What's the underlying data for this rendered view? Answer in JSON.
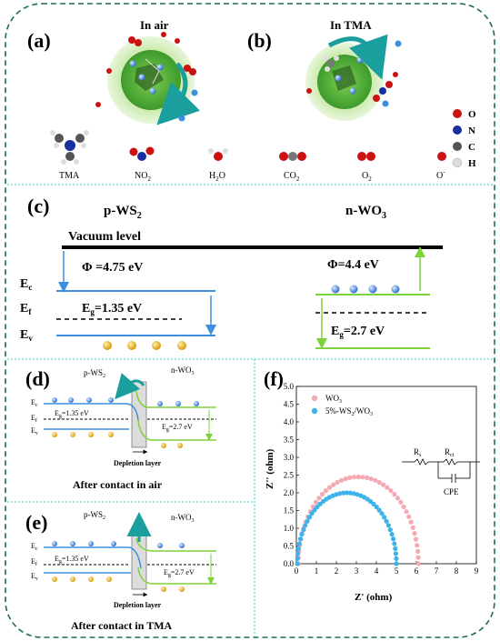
{
  "panels": {
    "a": "(a)",
    "b": "(b)",
    "c": "(c)",
    "d": "(d)",
    "e": "(e)",
    "f": "(f)"
  },
  "top": {
    "in_air": "In air",
    "in_tma": "In TMA",
    "molecules": [
      "TMA",
      "NO2",
      "H2O",
      "CO2",
      "O2",
      "O-"
    ],
    "legend": [
      "O",
      "N",
      "C",
      "H"
    ],
    "legend_colors": [
      "#cc1111",
      "#1a2fa0",
      "#555555",
      "#dddddd"
    ]
  },
  "band_c": {
    "left_title": "p-WS2",
    "right_title": "n-WO3",
    "vacuum": "Vacuum level",
    "phi_left": "Φ =4.75 eV",
    "phi_right": "Φ=4.4 eV",
    "ec": "E",
    "ef": "E",
    "ev": "E",
    "eg_left": "E",
    "eg_left_val": "=1.35 eV",
    "eg_right": "E",
    "eg_right_val": "=2.7 eV"
  },
  "band_d": {
    "left": "p-WS2",
    "right": "n-WO3",
    "eg_left": "Eg=1.35 eV",
    "eg_right": "Eg=2.7 eV",
    "depletion": "Depletion layer",
    "caption": "After contact in air"
  },
  "band_e": {
    "left": "p-WS2",
    "right": "n-WO3",
    "eg_left": "Eg=1.35 eV",
    "eg_right": "Eg=2.7 eV",
    "depletion": "Depletion layer",
    "caption": "After contact in TMA"
  },
  "chart_data": {
    "type": "scatter",
    "xlabel": "Z' (ohm)",
    "ylabel": "Z'' (ohm)",
    "xlim": [
      0,
      9
    ],
    "ylim": [
      0,
      5.0
    ],
    "xticks": [
      0,
      1,
      2,
      3,
      4,
      5,
      6,
      7,
      8,
      9
    ],
    "yticks": [
      0.0,
      0.5,
      1.0,
      1.5,
      2.0,
      2.5,
      3.0,
      3.5,
      4.0,
      4.5,
      5.0
    ],
    "legend_position": "top-left",
    "series": [
      {
        "name": "WO3",
        "color": "#f4a9b3",
        "semicircle": {
          "start": 0.1,
          "end": 6.1,
          "peak": 2.45
        }
      },
      {
        "name": "5%-WS2/WO3",
        "color": "#3fb3e8",
        "semicircle": {
          "start": 0.05,
          "end": 5.0,
          "peak": 2.0
        }
      }
    ],
    "circuit": {
      "rs": "R",
      "rs_sub": "s",
      "rct": "R",
      "rct_sub": "ct",
      "cpe": "CPE"
    }
  }
}
